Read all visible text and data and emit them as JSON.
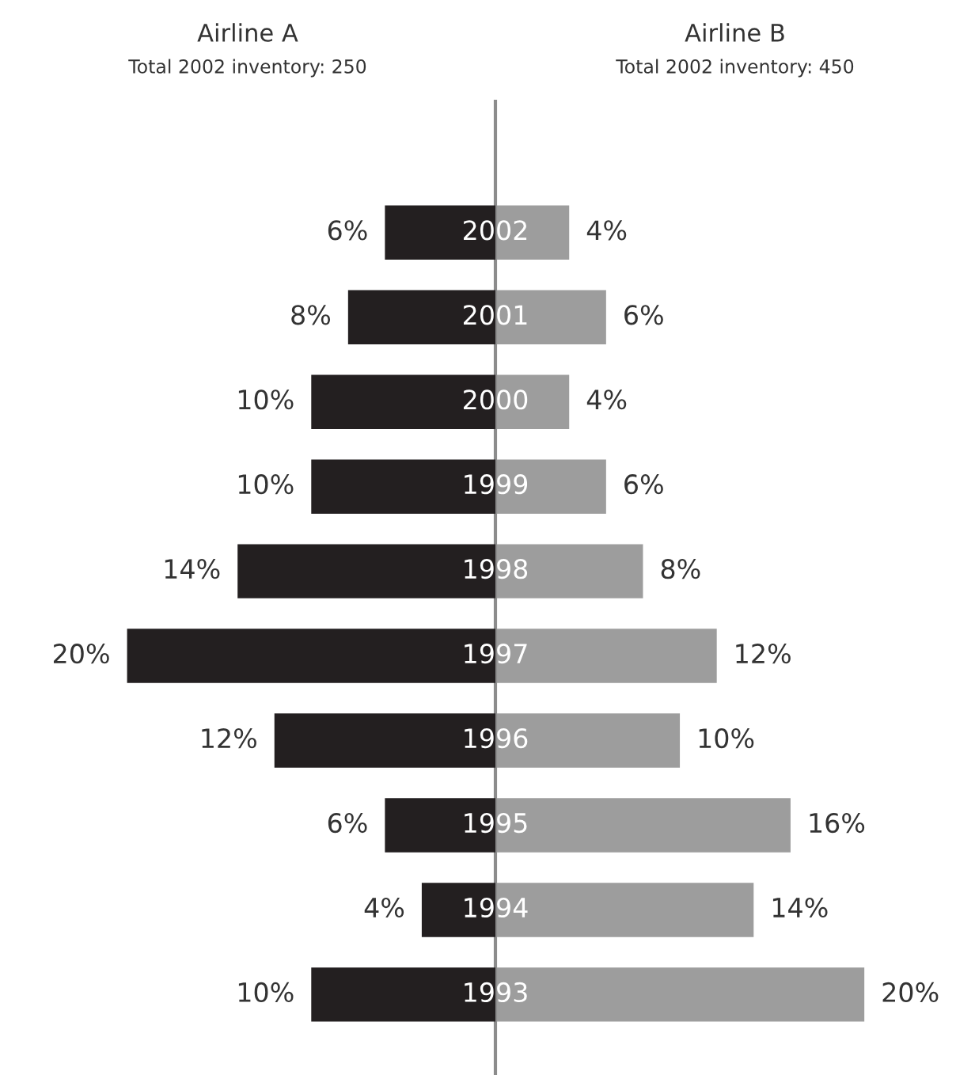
{
  "chart_data": [
    {
      "type": "bar",
      "orientation": "horizontal",
      "title": "Airline A",
      "subtitle": "Total 2002 inventory: 250",
      "categories": [
        "2002",
        "2001",
        "2000",
        "1999",
        "1998",
        "1997",
        "1996",
        "1995",
        "1994",
        "1993"
      ],
      "series": [
        {
          "color": "#231f20",
          "values": [
            6,
            8,
            10,
            10,
            14,
            20,
            12,
            6,
            4,
            10
          ],
          "value_labels": [
            "6%",
            "8%",
            "10%",
            "10%",
            "14%",
            "20%",
            "12%",
            "6%",
            "4%",
            "10%"
          ]
        }
      ]
    },
    {
      "type": "bar",
      "orientation": "horizontal",
      "title": "Airline B",
      "subtitle": "Total 2002 inventory: 450",
      "categories": [
        null,
        null,
        null,
        null,
        null,
        null,
        null,
        null,
        null,
        null
      ],
      "series": [
        {
          "color": "#9d9d9d",
          "values": [
            4,
            6,
            4,
            6,
            8,
            12,
            10,
            16,
            14,
            20
          ],
          "value_labels": [
            "4%",
            "6%",
            "4%",
            "6%",
            "8%",
            "12%",
            "10%",
            "16%",
            "14%",
            "20%"
          ]
        }
      ]
    }
  ]
}
